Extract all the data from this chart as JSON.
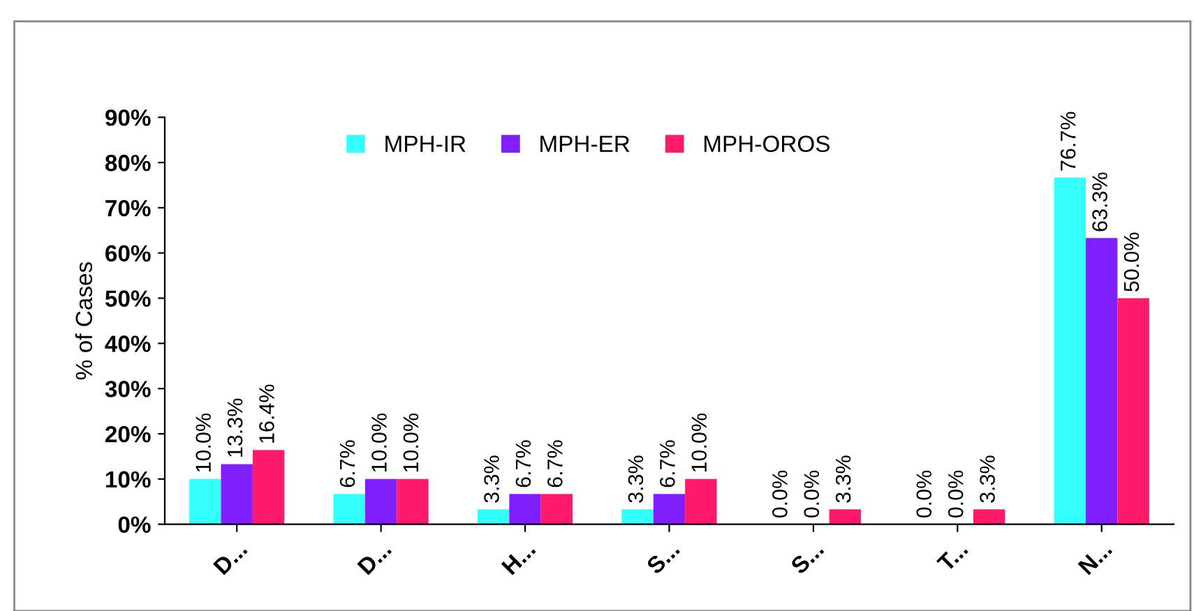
{
  "chart_data": {
    "type": "bar",
    "ylabel": "% of Cases",
    "categories": [
      "D...",
      "D...",
      "H...",
      "S...",
      "S...",
      "T...",
      "N..."
    ],
    "series": [
      {
        "name": "MPH-IR",
        "color": "#33ffff",
        "values": [
          10.0,
          6.7,
          3.3,
          3.3,
          0.0,
          0.0,
          76.7
        ]
      },
      {
        "name": "MPH-ER",
        "color": "#7f1fff",
        "values": [
          13.3,
          10.0,
          6.7,
          6.7,
          0.0,
          0.0,
          63.3
        ]
      },
      {
        "name": "MPH-OROS",
        "color": "#ff1a6a",
        "values": [
          16.4,
          10.0,
          6.7,
          10.0,
          3.3,
          3.3,
          50.0
        ]
      }
    ],
    "ylim": [
      0,
      90
    ],
    "yticks": [
      {
        "value": 0,
        "label": "0%"
      },
      {
        "value": 10,
        "label": "10%"
      },
      {
        "value": 20,
        "label": "20%"
      },
      {
        "value": 30,
        "label": "30%"
      },
      {
        "value": 40,
        "label": "40%"
      },
      {
        "value": 50,
        "label": "50%"
      },
      {
        "value": 60,
        "label": "60%"
      },
      {
        "value": 70,
        "label": "70%"
      },
      {
        "value": 80,
        "label": "80%"
      },
      {
        "value": 90,
        "label": "90%"
      }
    ],
    "value_labels": [
      [
        "10.0%",
        "6.7%",
        "3.3%",
        "3.3%",
        "0.0%",
        "0.0%",
        "76.7%"
      ],
      [
        "13.3%",
        "10.0%",
        "6.7%",
        "6.7%",
        "0.0%",
        "0.0%",
        "63.3%"
      ],
      [
        "16.4%",
        "10.0%",
        "6.7%",
        "10.0%",
        "3.3%",
        "3.3%",
        "50.0%"
      ]
    ],
    "legend": "top",
    "grid": false
  }
}
